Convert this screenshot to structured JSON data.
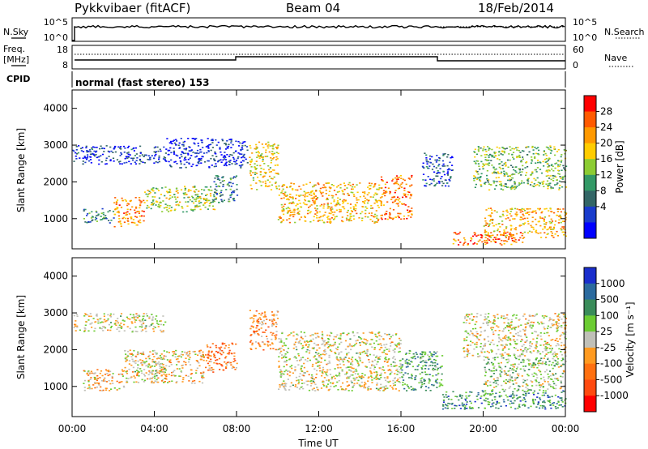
{
  "header": {
    "station": "Pykkvibaer (fitACF)",
    "beam": "Beam 04",
    "date": "18/Feb/2014"
  },
  "strip_panels": {
    "nsky": {
      "left_label": "N.Sky",
      "left_ticks": [
        "10^5",
        "10^0"
      ],
      "right_ticks": [
        "10^5",
        "10^0"
      ],
      "right_label": "N.Search"
    },
    "freq": {
      "left_label_1": "Freq.",
      "left_label_2": "[MHz]",
      "left_ticks": [
        "18",
        "8"
      ],
      "right_ticks": [
        "60",
        "0"
      ],
      "right_label": "Nave"
    },
    "cpid": {
      "label": "CPID",
      "text": "normal (fast stereo) 153"
    }
  },
  "axes": {
    "x_ticks": [
      "00:00",
      "04:00",
      "08:00",
      "12:00",
      "16:00",
      "20:00",
      "00:00"
    ],
    "x_label": "Time UT",
    "y_ticks": [
      "4000",
      "3000",
      "2000",
      "1000"
    ],
    "y_label": "Slant Range [km]"
  },
  "colorbars": {
    "power": {
      "label": "Power [dB]",
      "ticks": [
        "28",
        "24",
        "20",
        "16",
        "12",
        "8",
        "4"
      ],
      "colors": [
        "#ff0000",
        "#ff5a00",
        "#ff9900",
        "#ffcc00",
        "#8ccc33",
        "#339966",
        "#336666",
        "#1a3ccc",
        "#0000ff"
      ]
    },
    "velocity": {
      "label": "Velocity [m s⁻¹]",
      "ticks": [
        "1000",
        "500",
        "100",
        "25",
        "-25",
        "-100",
        "-500",
        "-1000"
      ],
      "colors": [
        "#1a2ecc",
        "#2b6a9e",
        "#3a8c5a",
        "#6ccc33",
        "#c0c0b8",
        "#ff9a20",
        "#ff7010",
        "#ff4a10",
        "#ff0000"
      ]
    }
  },
  "chart_data": {
    "type": "heatmap",
    "title": "Pykkvibaer (fitACF) Beam 04 18/Feb/2014",
    "x_range_hours": [
      0,
      24
    ],
    "y_range_km": [
      180,
      4500
    ],
    "panels": [
      {
        "name": "Power [dB]",
        "range": [
          0,
          30
        ],
        "regions": [
          {
            "t": [
              0,
              4.5
            ],
            "r": [
              2500,
              3000
            ],
            "power": 5
          },
          {
            "t": [
              4.5,
              8.5
            ],
            "r": [
              2400,
              3200
            ],
            "power": 4
          },
          {
            "t": [
              0.5,
              2
            ],
            "r": [
              900,
              1300
            ],
            "power": 10
          },
          {
            "t": [
              2,
              3.5
            ],
            "r": [
              800,
              1600
            ],
            "power": 22
          },
          {
            "t": [
              3.5,
              7
            ],
            "r": [
              1200,
              1900
            ],
            "power": 16
          },
          {
            "t": [
              6.8,
              8
            ],
            "r": [
              1400,
              2200
            ],
            "power": 9
          },
          {
            "t": [
              8.6,
              10
            ],
            "r": [
              1800,
              3100
            ],
            "power": 18
          },
          {
            "t": [
              10,
              15
            ],
            "r": [
              900,
              2000
            ],
            "power": 20
          },
          {
            "t": [
              15,
              16.5
            ],
            "r": [
              1000,
              2200
            ],
            "power": 24
          },
          {
            "t": [
              17,
              18.5
            ],
            "r": [
              1900,
              2800
            ],
            "power": 6
          },
          {
            "t": [
              18.5,
              22
            ],
            "r": [
              300,
              650
            ],
            "power": 24
          },
          {
            "t": [
              20,
              24
            ],
            "r": [
              500,
              1300
            ],
            "power": 20
          },
          {
            "t": [
              19.5,
              24
            ],
            "r": [
              1800,
              3000
            ],
            "power": 14
          }
        ]
      },
      {
        "name": "Velocity [m s^-1]",
        "range": [
          -1000,
          1000
        ],
        "regions": [
          {
            "t": [
              0,
              4.5
            ],
            "r": [
              2500,
              3000
            ],
            "velocity": 0
          },
          {
            "t": [
              0.5,
              2.5
            ],
            "r": [
              900,
              1500
            ],
            "velocity": -150
          },
          {
            "t": [
              2.5,
              6.5
            ],
            "r": [
              1100,
              2000
            ],
            "velocity": -120
          },
          {
            "t": [
              3,
              4.5
            ],
            "r": [
              1300,
              1700
            ],
            "velocity": 60
          },
          {
            "t": [
              6.5,
              8
            ],
            "r": [
              1400,
              2200
            ],
            "velocity": -400
          },
          {
            "t": [
              8.6,
              10
            ],
            "r": [
              2000,
              3100
            ],
            "velocity": -300
          },
          {
            "t": [
              10,
              16
            ],
            "r": [
              900,
              2500
            ],
            "velocity": 0
          },
          {
            "t": [
              16,
              18
            ],
            "r": [
              900,
              2000
            ],
            "velocity": 400
          },
          {
            "t": [
              18,
              24
            ],
            "r": [
              400,
              900
            ],
            "velocity": 500
          },
          {
            "t": [
              20,
              24
            ],
            "r": [
              900,
              1800
            ],
            "velocity": 150
          },
          {
            "t": [
              19,
              24
            ],
            "r": [
              1800,
              3000
            ],
            "velocity": -20
          }
        ]
      }
    ]
  }
}
